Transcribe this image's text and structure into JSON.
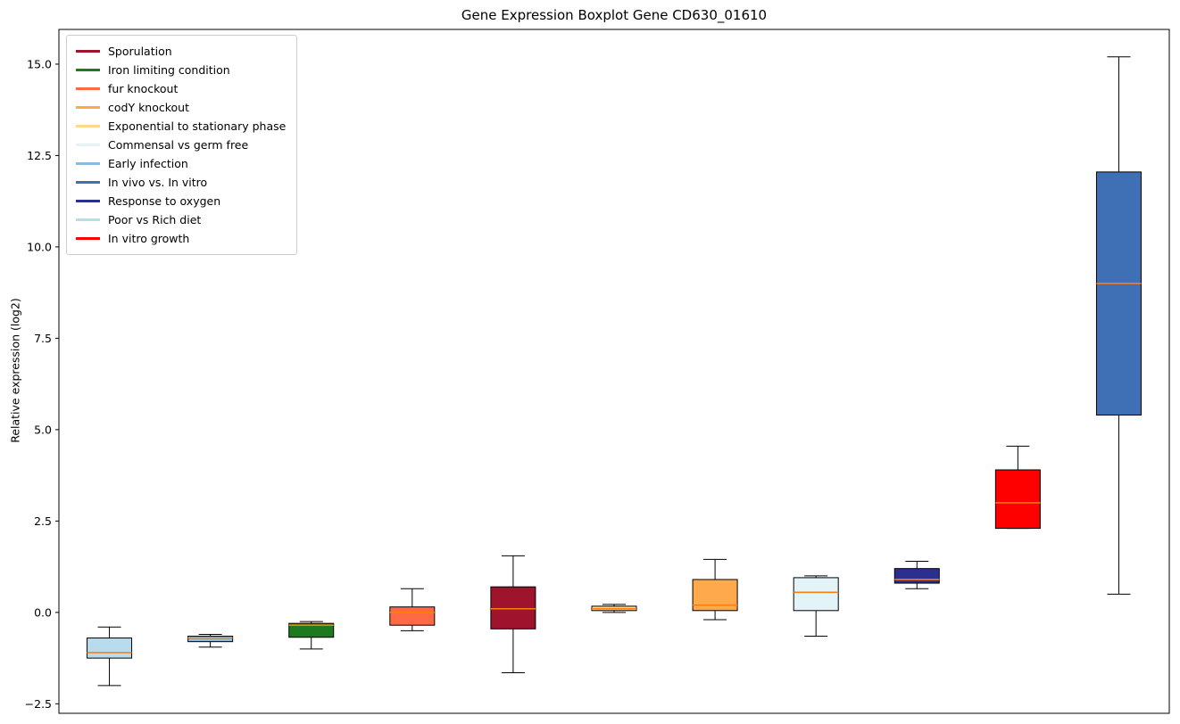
{
  "chart_data": {
    "type": "boxplot",
    "title": "Gene Expression Boxplot Gene CD630_01610",
    "xlabel": "",
    "ylabel": "Relative expression (log2)",
    "ylim": [
      -2.76,
      15.95
    ],
    "yticks": [
      -2.5,
      0.0,
      2.5,
      5.0,
      7.5,
      10.0,
      12.5,
      15.0
    ],
    "grid": false,
    "legend_position": "upper left",
    "median_color": "#FF7F0E",
    "legend": [
      {
        "label": "Sporulation",
        "color": "#A0132D"
      },
      {
        "label": "Iron limiting condition",
        "color": "#1E7A1E"
      },
      {
        "label": "fur knockout",
        "color": "#FF6A45"
      },
      {
        "label": "codY knockout",
        "color": "#FFA94D"
      },
      {
        "label": "Exponential to stationary phase",
        "color": "#FFD78E"
      },
      {
        "label": "Commensal vs germ free",
        "color": "#E2F4F8"
      },
      {
        "label": "Early infection",
        "color": "#8CBADC"
      },
      {
        "label": "In vivo vs. In vitro",
        "color": "#3F6FB5"
      },
      {
        "label": "Response to oxygen",
        "color": "#2B2F8E"
      },
      {
        "label": "Poor vs Rich diet",
        "color": "#B8DCEC"
      },
      {
        "label": "In vitro growth",
        "color": "#FF0000"
      }
    ],
    "series": [
      {
        "name": "Poor vs Rich diet",
        "color": "#B8DCEC",
        "whisker_low": -2.0,
        "q1": -1.25,
        "median": -1.1,
        "q3": -0.7,
        "whisker_high": -0.4
      },
      {
        "name": "Early infection",
        "color": "#8CBADC",
        "whisker_low": -0.95,
        "q1": -0.8,
        "median": -0.7,
        "q3": -0.65,
        "whisker_high": -0.6
      },
      {
        "name": "Iron limiting condition",
        "color": "#1E7A1E",
        "whisker_low": -1.0,
        "q1": -0.68,
        "median": -0.35,
        "q3": -0.3,
        "whisker_high": -0.25
      },
      {
        "name": "fur knockout",
        "color": "#FF6A45",
        "whisker_low": -0.5,
        "q1": -0.35,
        "median": 0.0,
        "q3": 0.15,
        "whisker_high": 0.65
      },
      {
        "name": "Sporulation",
        "color": "#A0132D",
        "whisker_low": -1.65,
        "q1": -0.45,
        "median": 0.1,
        "q3": 0.7,
        "whisker_high": 1.55
      },
      {
        "name": "Exponential to stationary phase",
        "color": "#FFD78E",
        "whisker_low": 0.0,
        "q1": 0.05,
        "median": 0.1,
        "q3": 0.17,
        "whisker_high": 0.22
      },
      {
        "name": "codY knockout",
        "color": "#FFA94D",
        "whisker_low": -0.2,
        "q1": 0.05,
        "median": 0.2,
        "q3": 0.9,
        "whisker_high": 1.45
      },
      {
        "name": "Commensal vs germ free",
        "color": "#E2F4F8",
        "whisker_low": -0.65,
        "q1": 0.05,
        "median": 0.55,
        "q3": 0.95,
        "whisker_high": 1.0
      },
      {
        "name": "Response to oxygen",
        "color": "#2B2F8E",
        "whisker_low": 0.65,
        "q1": 0.8,
        "median": 0.9,
        "q3": 1.2,
        "whisker_high": 1.4
      },
      {
        "name": "In vitro growth",
        "color": "#FF0000",
        "whisker_low": 2.3,
        "q1": 2.3,
        "median": 3.0,
        "q3": 3.9,
        "whisker_high": 4.55
      },
      {
        "name": "In vivo vs. In vitro",
        "color": "#3F6FB5",
        "whisker_low": 0.5,
        "q1": 5.4,
        "median": 9.0,
        "q3": 12.05,
        "whisker_high": 15.2
      }
    ]
  }
}
